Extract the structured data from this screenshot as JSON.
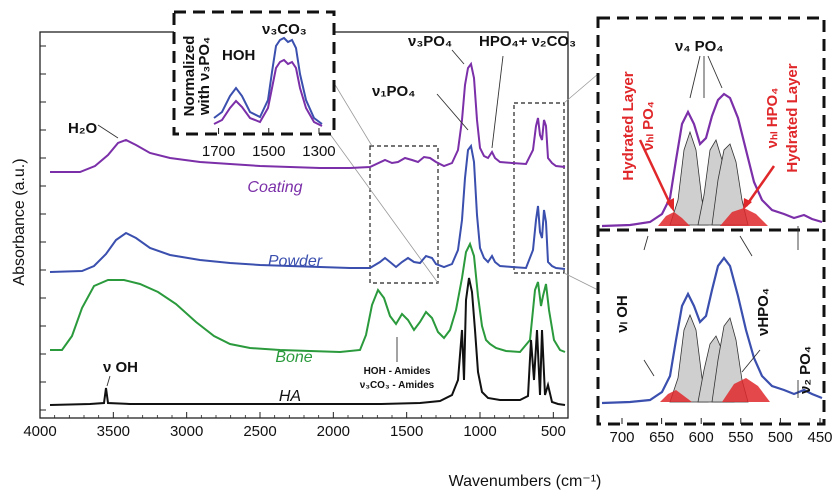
{
  "chart_data": [
    {
      "type": "line",
      "title": "",
      "xlabel": "Wavenumbers (cm⁻¹)",
      "ylabel": "Absorbance (a.u.)",
      "xlim": [
        4000,
        400
      ],
      "xticks": [
        "4000",
        "3500",
        "3000",
        "2500",
        "2000",
        "1500",
        "1000",
        "500"
      ],
      "series": [
        {
          "name": "Coating",
          "color": "#7b2fa8"
        },
        {
          "name": "Powder",
          "color": "#3a4fae"
        },
        {
          "name": "Bone",
          "color": "#2a9a3c"
        },
        {
          "name": "HA",
          "color": "#111111"
        }
      ],
      "annotations": {
        "h2o": "H₂O",
        "v_oh": "ν OH",
        "v1po4": "ν₁PO₄",
        "v3po4": "ν₃PO₄",
        "hpo4_v2co3": "HPO₄+ ν₂CO₃",
        "amides1": "HOH - Amides",
        "amides2": "ν₃CO₃ - Amides"
      }
    },
    {
      "type": "line",
      "title": "",
      "inset": true,
      "ylabel_line1": "Normalized",
      "ylabel_line2": "with ν₃PO₄",
      "xlim": [
        1750,
        1280
      ],
      "xticks": [
        "1700",
        "1500",
        "1300"
      ],
      "annotations": {
        "hoh": "HOH",
        "v3co3": "ν₃CO₃"
      },
      "series": [
        {
          "name": "Powder",
          "color": "#3a4fae"
        },
        {
          "name": "Coating",
          "color": "#7b2fa8"
        }
      ]
    },
    {
      "type": "line",
      "title": "",
      "xlim": [
        700,
        450
      ],
      "xticks": [
        "700",
        "650",
        "600",
        "550",
        "500",
        "450"
      ],
      "annotations": {
        "v4po4": "ν₄ PO₄",
        "hl_po4_a": "Hydrated Layer",
        "hl_po4_b": "νₕₗ PO₄",
        "hl_hpo4_a": "Hydrated Layer",
        "hl_hpo4_b": "νₕₗ HPO₄",
        "vl_oh": "νₗ OH",
        "vhpo4": "νHPO₄",
        "v2po4": "ν₂ PO₄"
      },
      "series": [
        {
          "name": "Coating",
          "color": "#7b2fa8"
        },
        {
          "name": "Powder",
          "color": "#3a4fae"
        }
      ]
    }
  ]
}
